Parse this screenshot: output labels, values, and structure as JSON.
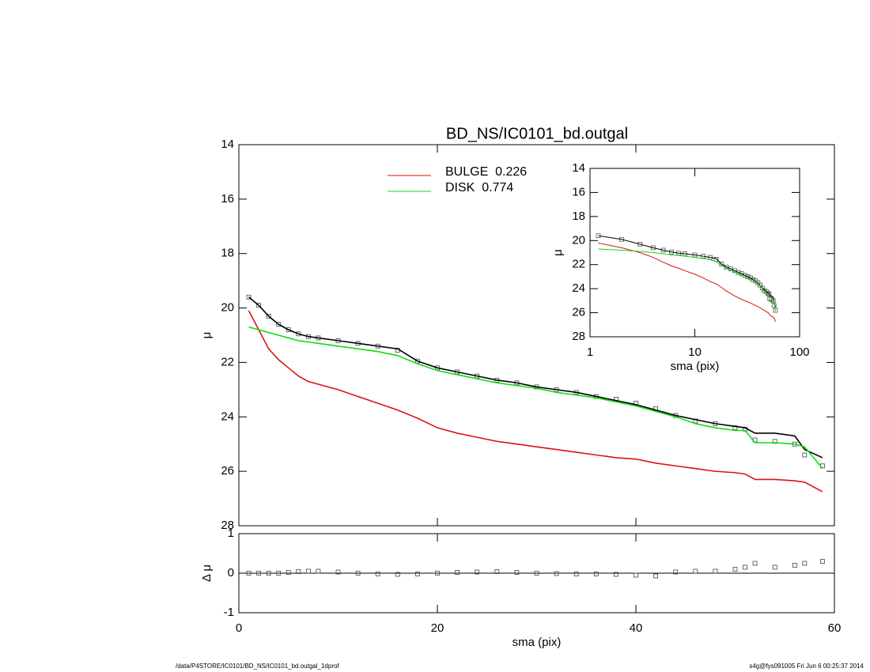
{
  "chart_data": [
    {
      "type": "line",
      "title": "BD_NS/IC0101_bd.outgal",
      "ylabel": "μ",
      "x": [
        1,
        2,
        3,
        4,
        5,
        6,
        7,
        8,
        10,
        12,
        14,
        16,
        18,
        20,
        22,
        24,
        26,
        28,
        30,
        32,
        34,
        36,
        38,
        40,
        42,
        44,
        46,
        48,
        50,
        51,
        52,
        54,
        56,
        57,
        58.8
      ],
      "xlim": [
        0,
        60
      ],
      "xticks": [
        0,
        20,
        40,
        60
      ],
      "ylim": [
        28,
        14
      ],
      "yticks": [
        14,
        16,
        18,
        20,
        22,
        24,
        26,
        28
      ],
      "series": [
        {
          "marker": "square",
          "color": "#444444",
          "values": [
            19.6,
            19.9,
            20.3,
            20.6,
            20.8,
            20.95,
            21.05,
            21.1,
            21.2,
            21.3,
            21.4,
            21.55,
            21.95,
            22.2,
            22.35,
            22.5,
            22.65,
            22.75,
            22.9,
            23.0,
            23.1,
            23.25,
            23.35,
            23.5,
            23.7,
            23.95,
            24.15,
            24.25,
            24.4,
            24.45,
            24.85,
            24.9,
            25.0,
            25.4,
            25.8
          ]
        },
        {
          "marker": "line",
          "color": "#000000",
          "values": [
            19.6,
            19.9,
            20.3,
            20.6,
            20.8,
            20.95,
            21.05,
            21.1,
            21.2,
            21.3,
            21.4,
            21.5,
            21.95,
            22.2,
            22.35,
            22.5,
            22.65,
            22.75,
            22.9,
            23.0,
            23.1,
            23.25,
            23.4,
            23.55,
            23.75,
            23.95,
            24.1,
            24.25,
            24.35,
            24.4,
            24.6,
            24.6,
            24.7,
            25.2,
            25.5
          ]
        },
        {
          "name": "BULGE  0.226",
          "marker": "line",
          "color": "#dd1111",
          "values": [
            20.1,
            20.8,
            21.5,
            21.9,
            22.2,
            22.5,
            22.7,
            22.8,
            23.0,
            23.25,
            23.5,
            23.75,
            24.05,
            24.4,
            24.6,
            24.75,
            24.9,
            25.0,
            25.1,
            25.2,
            25.3,
            25.4,
            25.5,
            25.55,
            25.7,
            25.8,
            25.9,
            26.0,
            26.05,
            26.1,
            26.3,
            26.3,
            26.35,
            26.4,
            26.75
          ]
        },
        {
          "name": "DISK  0.774",
          "marker": "line",
          "color": "#11dd11",
          "values": [
            20.7,
            20.8,
            20.9,
            21.0,
            21.1,
            21.2,
            21.25,
            21.3,
            21.4,
            21.5,
            21.6,
            21.75,
            22.05,
            22.3,
            22.45,
            22.6,
            22.75,
            22.85,
            22.95,
            23.1,
            23.2,
            23.3,
            23.45,
            23.6,
            23.8,
            24.0,
            24.25,
            24.4,
            24.5,
            24.5,
            24.95,
            24.95,
            25.0,
            25.1,
            25.9
          ]
        }
      ]
    },
    {
      "type": "line",
      "xlabel": "sma (pix)",
      "ylabel": "Δ μ",
      "x": [
        1,
        2,
        3,
        4,
        5,
        6,
        7,
        8,
        10,
        12,
        14,
        16,
        18,
        20,
        22,
        24,
        26,
        28,
        30,
        32,
        34,
        36,
        38,
        40,
        42,
        44,
        46,
        48,
        50,
        51,
        52,
        54,
        56,
        57,
        58.8
      ],
      "xlim": [
        0,
        60
      ],
      "xticks": [
        0,
        20,
        40,
        60
      ],
      "ylim": [
        -1,
        1
      ],
      "yticks": [
        -1,
        0,
        1
      ],
      "hline": 0,
      "series": [
        {
          "marker": "square",
          "color": "#444444",
          "values": [
            0,
            0,
            0,
            0,
            0.02,
            0.04,
            0.05,
            0.05,
            0.03,
            0,
            -0.02,
            -0.03,
            -0.02,
            0,
            0.02,
            0.03,
            0.04,
            0.02,
            0,
            -0.01,
            -0.02,
            -0.02,
            -0.03,
            -0.05,
            -0.07,
            0.03,
            0.05,
            0.05,
            0.1,
            0.15,
            0.25,
            0.15,
            0.2,
            0.25,
            0.3
          ]
        }
      ]
    },
    {
      "type": "line",
      "xlabel": "sma (pix)",
      "ylabel": "μ",
      "log_x": true,
      "x": [
        1.2,
        2,
        3,
        4,
        5,
        6,
        7,
        8,
        10,
        12,
        14,
        16,
        18,
        20,
        22,
        24,
        26,
        28,
        30,
        32,
        34,
        36,
        38,
        40,
        42,
        44,
        46,
        48,
        50,
        51,
        52,
        54,
        56,
        57,
        58.8
      ],
      "xlim": [
        1,
        100
      ],
      "xticks": [
        1,
        10,
        100
      ],
      "ylim": [
        28,
        14
      ],
      "yticks": [
        14,
        16,
        18,
        20,
        22,
        24,
        26,
        28
      ],
      "series": [
        {
          "marker": "square",
          "color": "#555555",
          "values": [
            19.6,
            19.9,
            20.3,
            20.6,
            20.8,
            20.95,
            21.05,
            21.1,
            21.2,
            21.3,
            21.4,
            21.55,
            21.95,
            22.2,
            22.35,
            22.5,
            22.65,
            22.75,
            22.9,
            23.0,
            23.1,
            23.25,
            23.35,
            23.5,
            23.7,
            23.95,
            24.15,
            24.25,
            24.4,
            24.45,
            24.85,
            24.9,
            25.0,
            25.4,
            25.8
          ]
        },
        {
          "marker": "line",
          "color": "#000000",
          "values": [
            19.6,
            19.9,
            20.3,
            20.6,
            20.8,
            20.95,
            21.05,
            21.1,
            21.2,
            21.3,
            21.4,
            21.5,
            21.95,
            22.2,
            22.35,
            22.5,
            22.65,
            22.75,
            22.9,
            23.0,
            23.1,
            23.25,
            23.4,
            23.55,
            23.75,
            23.95,
            24.1,
            24.25,
            24.35,
            24.4,
            24.6,
            24.6,
            24.7,
            25.2,
            25.5
          ]
        },
        {
          "marker": "line",
          "color": "#dd1111",
          "values": [
            20.2,
            20.6,
            21.0,
            21.4,
            21.8,
            22.1,
            22.3,
            22.5,
            22.8,
            23.1,
            23.4,
            23.6,
            23.9,
            24.2,
            24.4,
            24.6,
            24.75,
            24.9,
            25.0,
            25.1,
            25.2,
            25.3,
            25.4,
            25.5,
            25.6,
            25.7,
            25.8,
            25.9,
            26.0,
            26.05,
            26.2,
            26.3,
            26.35,
            26.4,
            26.75
          ]
        },
        {
          "marker": "line",
          "color": "#11dd11",
          "values": [
            20.7,
            20.8,
            20.9,
            21.0,
            21.1,
            21.2,
            21.25,
            21.3,
            21.4,
            21.5,
            21.6,
            21.75,
            22.05,
            22.3,
            22.45,
            22.6,
            22.75,
            22.85,
            22.95,
            23.1,
            23.2,
            23.3,
            23.45,
            23.6,
            23.8,
            24.0,
            24.25,
            24.4,
            24.5,
            24.5,
            24.95,
            24.95,
            25.0,
            25.1,
            25.9
          ]
        }
      ]
    }
  ],
  "footer": {
    "left": "/data/P4STORE/IC0101/BD_NS/IC0101_bd.outgal_1dprof",
    "right": "s4g@fys091005  Fri Jun  6 00:25:37 2014"
  }
}
